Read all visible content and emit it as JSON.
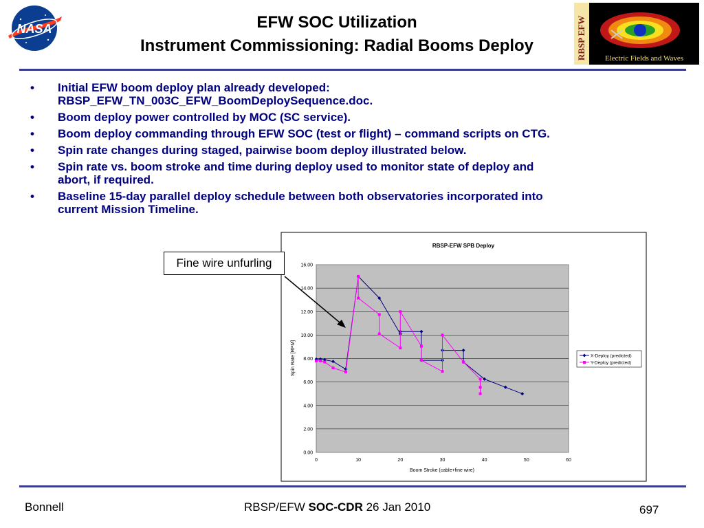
{
  "header": {
    "title_line1": "EFW SOC Utilization",
    "title_line2": "Instrument Commissioning: Radial Booms Deploy",
    "nasa_logo_text": "NASA",
    "efw_logo_side_text": "RBSP EFW",
    "efw_logo_caption": "Electric Fields and Waves"
  },
  "bullets": [
    {
      "line1": "Initial EFW boom deploy plan already developed:",
      "line2": "RBSP_EFW_TN_003C_EFW_BoomDeploySequence.doc."
    },
    {
      "line1": "Boom deploy power controlled by MOC (SC service).",
      "line2": ""
    },
    {
      "line1": "Boom deploy commanding through EFW SOC (test or flight) – command scripts on CTG.",
      "line2": ""
    },
    {
      "line1": "Spin rate changes during staged, pairwise boom deploy illustrated below.",
      "line2": ""
    },
    {
      "line1": "Spin rate vs. boom stroke and time during deploy used to monitor state of deploy and",
      "line2": "abort, if required."
    },
    {
      "line1": "Baseline 15-day parallel deploy schedule between both observatories incorporated into",
      "line2": "current Mission Timeline."
    }
  ],
  "callout": "Fine wire unfurling",
  "footer": {
    "left": "Bonnell",
    "center_prefix": "RBSP/EFW ",
    "center_bold": "SOC-CDR",
    "center_suffix": " 26 Jan 2010",
    "page": "697"
  },
  "colors": {
    "rule": "#3b3b8f",
    "bullet_text": "#000080",
    "plot_bg": "#c0c0c0",
    "x_series": "#000080",
    "y_series": "#ff00ff"
  },
  "chart_data": {
    "type": "line",
    "title": "RBSP-EFW SPB Deploy",
    "xlabel": "Boom Stroke (cable+fine wire)",
    "ylabel": "Spin Rate [RPM]",
    "xlim": [
      0,
      60
    ],
    "ylim": [
      0,
      16
    ],
    "x_ticks": [
      "0",
      "10",
      "20",
      "30",
      "40",
      "50",
      "60"
    ],
    "y_ticks": [
      "0.00",
      "2.00",
      "4.00",
      "6.00",
      "8.00",
      "10.00",
      "12.00",
      "14.00",
      "16.00"
    ],
    "grid": true,
    "legend_position": "right",
    "series": [
      {
        "name": "X-Deploy (predicted)",
        "color": "#000080",
        "marker": "diamond",
        "x": [
          0,
          1,
          2,
          4,
          7,
          10,
          15,
          20,
          20,
          25,
          25,
          30,
          30,
          35,
          35,
          40,
          45,
          49
        ],
        "y": [
          7.95,
          7.95,
          7.9,
          7.75,
          7.1,
          15.0,
          13.15,
          10.1,
          10.3,
          10.3,
          7.85,
          7.85,
          8.7,
          8.7,
          7.7,
          6.25,
          5.55,
          5.0
        ]
      },
      {
        "name": "Y-Deploy (predicted)",
        "color": "#ff00ff",
        "marker": "square",
        "x": [
          0,
          1,
          2,
          4,
          7,
          10,
          10,
          15,
          15,
          20,
          20,
          25,
          25,
          30,
          30,
          35,
          39,
          39,
          39
        ],
        "y": [
          7.8,
          7.8,
          7.7,
          7.2,
          6.85,
          15.0,
          13.15,
          11.75,
          10.1,
          8.9,
          12.0,
          9.05,
          7.85,
          6.9,
          10.0,
          7.7,
          6.25,
          5.55,
          5.0
        ]
      }
    ]
  }
}
